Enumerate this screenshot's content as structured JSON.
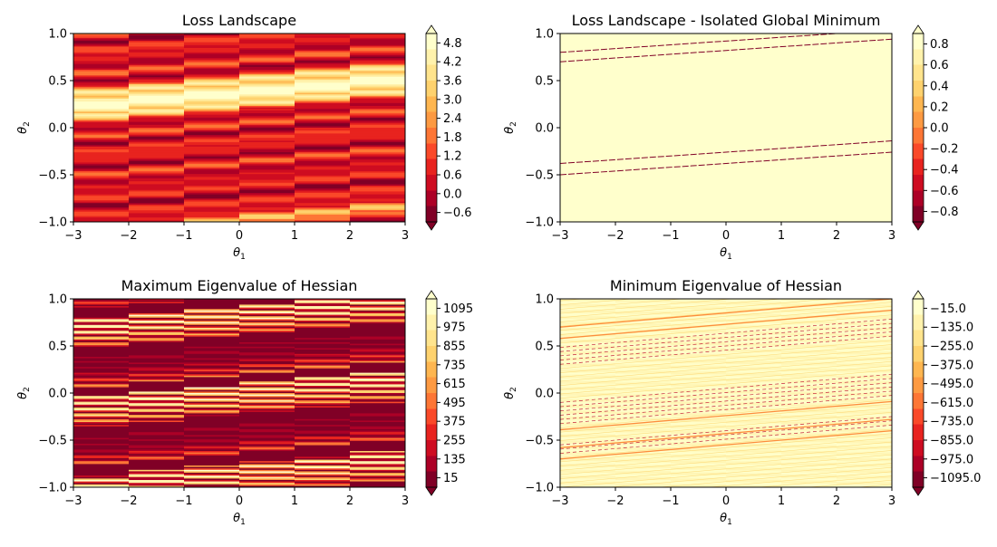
{
  "figure": {
    "background": "#ffffff",
    "axis_color": "#000000",
    "colormap": "YlOrRd_r"
  },
  "chart_data": [
    {
      "type": "heatmap",
      "title": "Loss Landscape",
      "xlabel": "θ1",
      "ylabel": "θ2",
      "xlim": [
        -3,
        3
      ],
      "ylim": [
        -1,
        1
      ],
      "x_ticks": [
        -3,
        -2,
        -1,
        0,
        1,
        2,
        3
      ],
      "y_ticks": [
        -1.0,
        -0.5,
        0.0,
        0.5,
        1.0
      ],
      "colorbar_ticks": [
        4.8,
        4.2,
        3.6,
        3.0,
        2.4,
        1.8,
        1.2,
        0.6,
        0.0,
        -0.6
      ],
      "colorbar_extend": "both",
      "value_range": [
        -0.9,
        5.1
      ],
      "band_slope": 0.05,
      "style": "filled-bands",
      "bands": [
        {
          "y": -0.97,
          "width": 0.05,
          "level": 0.75
        },
        {
          "y": 0.37,
          "width": 0.13,
          "level": 1.0
        },
        {
          "y": 0.25,
          "width": 0.06,
          "level": 0.85
        },
        {
          "y": 0.5,
          "width": 0.06,
          "level": 0.85
        }
      ]
    },
    {
      "type": "heatmap",
      "title": "Loss Landscape - Isolated Global Minimum",
      "xlabel": "θ1",
      "ylabel": "θ2",
      "xlim": [
        -3,
        3
      ],
      "ylim": [
        -1,
        1
      ],
      "x_ticks": [
        -3,
        -2,
        -1,
        0,
        1,
        2,
        3
      ],
      "y_ticks": [
        -1.0,
        -0.5,
        0.0,
        0.5,
        1.0
      ],
      "colorbar_ticks": [
        0.8,
        0.6,
        0.4,
        0.2,
        0.0,
        -0.2,
        -0.4,
        -0.6,
        -0.8
      ],
      "colorbar_extend": "both",
      "value_range": [
        -0.9,
        0.9
      ],
      "style": "isolated-minimum",
      "lines": [
        {
          "intercept": 0.92,
          "slope": 0.04
        },
        {
          "intercept": 0.82,
          "slope": 0.04
        },
        {
          "intercept": -0.26,
          "slope": 0.04
        },
        {
          "intercept": -0.38,
          "slope": 0.04
        }
      ]
    },
    {
      "type": "heatmap",
      "title": "Maximum Eigenvalue of Hessian",
      "xlabel": "θ1",
      "ylabel": "θ2",
      "xlim": [
        -3,
        3
      ],
      "ylim": [
        -1,
        1
      ],
      "x_ticks": [
        -3,
        -2,
        -1,
        0,
        1,
        2,
        3
      ],
      "y_ticks": [
        -1.0,
        -0.5,
        0.0,
        0.5,
        1.0
      ],
      "colorbar_ticks": [
        1095,
        975,
        855,
        735,
        615,
        495,
        375,
        255,
        135,
        15
      ],
      "colorbar_extend": "both",
      "value_range": [
        -45,
        1155
      ],
      "band_slope": 0.05,
      "style": "striped-dark"
    },
    {
      "type": "heatmap",
      "title": "Minimum Eigenvalue of Hessian",
      "xlabel": "θ1",
      "ylabel": "θ2",
      "xlim": [
        -3,
        3
      ],
      "ylim": [
        -1,
        1
      ],
      "x_ticks": [
        -3,
        -2,
        -1,
        0,
        1,
        2,
        3
      ],
      "y_ticks": [
        -1.0,
        -0.5,
        0.0,
        0.5,
        1.0
      ],
      "colorbar_ticks": [
        -15,
        -135,
        -255,
        -375,
        -495,
        -615,
        -735,
        -855,
        -975,
        -1095
      ],
      "colorbar_extend": "both",
      "value_range": [
        -1155,
        45
      ],
      "band_slope": 0.05,
      "style": "striped-light",
      "orange_lines": [
        -0.55,
        -0.43,
        -0.24,
        0.73,
        0.85
      ]
    }
  ]
}
